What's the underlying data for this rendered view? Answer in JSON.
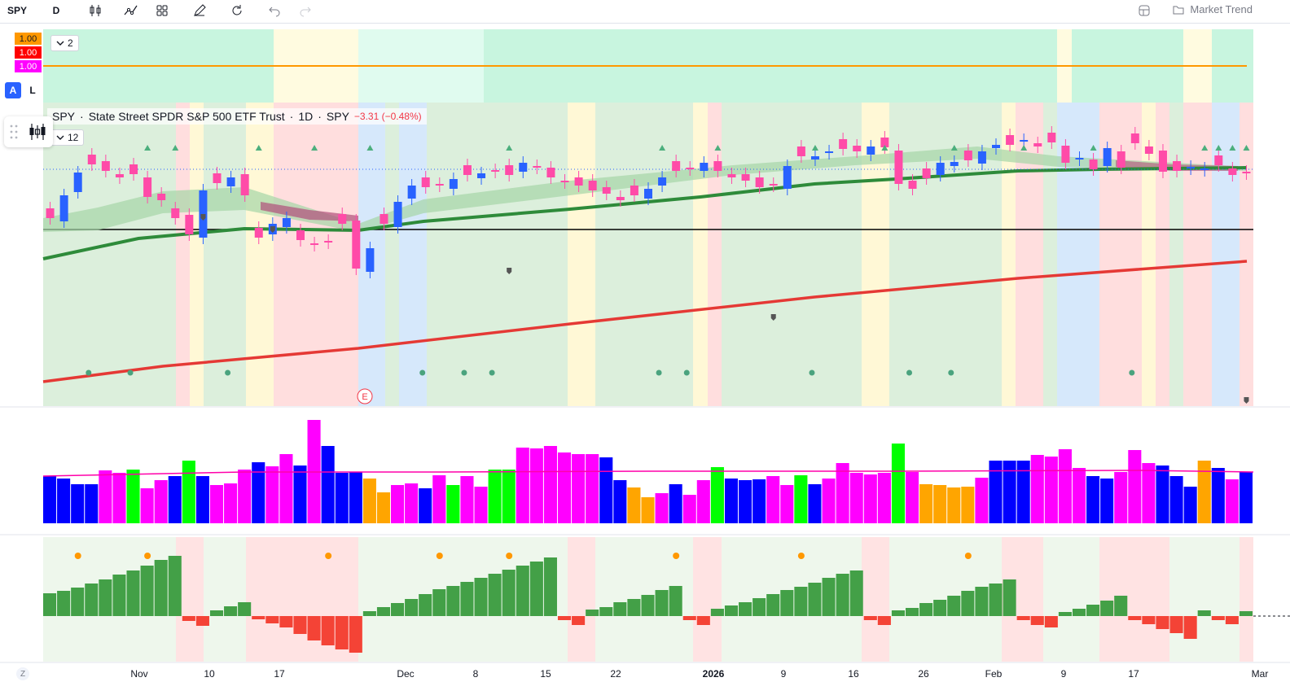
{
  "toolbar": {
    "symbol": "SPY",
    "interval": "D",
    "market_trend_label": "Market Trend",
    "icons": [
      "bar-style-icon",
      "indicators-icon",
      "templates-icon",
      "drawing-icon",
      "replay-icon",
      "undo-icon",
      "redo-icon",
      "layout-icon",
      "cloud-icon"
    ]
  },
  "top_pane": {
    "badges": [
      {
        "value": "1.00",
        "color": "#ff9800"
      },
      {
        "value": "1.00",
        "color": "#ff0000"
      },
      {
        "value": "1.00",
        "color": "#ff00ff"
      }
    ],
    "collapse_count": "2",
    "scale_auto": "A",
    "scale_log": "L",
    "line_color": "#ff9800"
  },
  "main_pane": {
    "legend": {
      "symbol": "SPY",
      "separator": "·",
      "name": "State Street SPDR S&P 500 ETF Trust",
      "interval": "1D",
      "exchange": "SPY",
      "change": "−3.31 (−0.48%)"
    },
    "collapse_count": "12",
    "earnings_marker": "E",
    "colors": {
      "up": "#2962ff",
      "down": "#ff4ba8",
      "ma_fast": "#2e8b3a",
      "ma_slow": "#e53935",
      "ribbon": "#a5d6a7",
      "hline": "#000000"
    }
  },
  "volume_colors": {
    "blue": "#0000ff",
    "magenta": "#ff00ff",
    "green": "#00ff00",
    "orange": "#ffa500",
    "ma": "#ff00aa"
  },
  "oscillator_colors": {
    "positive": "#43a047",
    "negative": "#f44336",
    "dot": "#ff9800"
  },
  "time_axis": {
    "z_button": "Z",
    "labels": [
      {
        "text": "Nov",
        "bold": false
      },
      {
        "text": "10",
        "bold": false
      },
      {
        "text": "17",
        "bold": false
      },
      {
        "text": "Dec",
        "bold": false
      },
      {
        "text": "8",
        "bold": false
      },
      {
        "text": "15",
        "bold": false
      },
      {
        "text": "22",
        "bold": false
      },
      {
        "text": "2026",
        "bold": true
      },
      {
        "text": "9",
        "bold": false
      },
      {
        "text": "16",
        "bold": false
      },
      {
        "text": "26",
        "bold": false
      },
      {
        "text": "Feb",
        "bold": false
      },
      {
        "text": "9",
        "bold": false
      },
      {
        "text": "17",
        "bold": false
      },
      {
        "text": "Mar",
        "bold": false
      }
    ]
  }
}
